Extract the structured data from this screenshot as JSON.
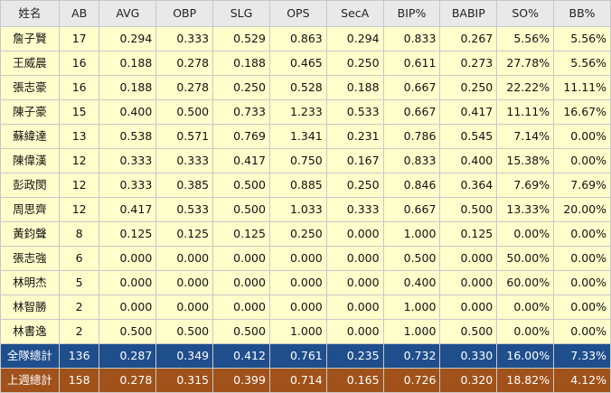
{
  "table": {
    "headers": [
      "姓名",
      "AB",
      "AVG",
      "OBP",
      "SLG",
      "OPS",
      "SecA",
      "BIP%",
      "BABIP",
      "SO%",
      "BB%"
    ],
    "rows": [
      [
        "詹子賢",
        "17",
        "0.294",
        "0.333",
        "0.529",
        "0.863",
        "0.294",
        "0.833",
        "0.267",
        "5.56%",
        "5.56%"
      ],
      [
        "王威晨",
        "16",
        "0.188",
        "0.278",
        "0.188",
        "0.465",
        "0.250",
        "0.611",
        "0.273",
        "27.78%",
        "5.56%"
      ],
      [
        "張志豪",
        "16",
        "0.188",
        "0.278",
        "0.250",
        "0.528",
        "0.188",
        "0.667",
        "0.250",
        "22.22%",
        "11.11%"
      ],
      [
        "陳子豪",
        "15",
        "0.400",
        "0.500",
        "0.733",
        "1.233",
        "0.533",
        "0.667",
        "0.417",
        "11.11%",
        "16.67%"
      ],
      [
        "蘇緯達",
        "13",
        "0.538",
        "0.571",
        "0.769",
        "1.341",
        "0.231",
        "0.786",
        "0.545",
        "7.14%",
        "0.00%"
      ],
      [
        "陳偉漢",
        "12",
        "0.333",
        "0.333",
        "0.417",
        "0.750",
        "0.167",
        "0.833",
        "0.400",
        "15.38%",
        "0.00%"
      ],
      [
        "彭政閔",
        "12",
        "0.333",
        "0.385",
        "0.500",
        "0.885",
        "0.250",
        "0.846",
        "0.364",
        "7.69%",
        "7.69%"
      ],
      [
        "周思齊",
        "12",
        "0.417",
        "0.533",
        "0.500",
        "1.033",
        "0.333",
        "0.667",
        "0.500",
        "13.33%",
        "20.00%"
      ],
      [
        "黃鈞聲",
        "8",
        "0.125",
        "0.125",
        "0.125",
        "0.250",
        "0.000",
        "1.000",
        "0.125",
        "0.00%",
        "0.00%"
      ],
      [
        "張志強",
        "6",
        "0.000",
        "0.000",
        "0.000",
        "0.000",
        "0.000",
        "0.500",
        "0.000",
        "50.00%",
        "0.00%"
      ],
      [
        "林明杰",
        "5",
        "0.000",
        "0.000",
        "0.000",
        "0.000",
        "0.000",
        "0.400",
        "0.000",
        "60.00%",
        "0.00%"
      ],
      [
        "林智勝",
        "2",
        "0.000",
        "0.000",
        "0.000",
        "0.000",
        "0.000",
        "1.000",
        "0.000",
        "0.00%",
        "0.00%"
      ],
      [
        "林書逸",
        "2",
        "0.500",
        "0.500",
        "0.500",
        "1.000",
        "0.000",
        "1.000",
        "0.500",
        "0.00%",
        "0.00%"
      ]
    ],
    "team_total": [
      "全隊總計",
      "136",
      "0.287",
      "0.349",
      "0.412",
      "0.761",
      "0.235",
      "0.732",
      "0.330",
      "16.00%",
      "7.33%"
    ],
    "last_week_total": [
      "上週總計",
      "158",
      "0.278",
      "0.315",
      "0.399",
      "0.714",
      "0.165",
      "0.726",
      "0.320",
      "18.82%",
      "4.12%"
    ]
  },
  "colors": {
    "header_bg": "#e9e9e9",
    "row_bg": "#ffffcc",
    "team_total_bg": "#1f4e8c",
    "last_week_bg": "#a0521a",
    "border": "#c8c8c8"
  }
}
